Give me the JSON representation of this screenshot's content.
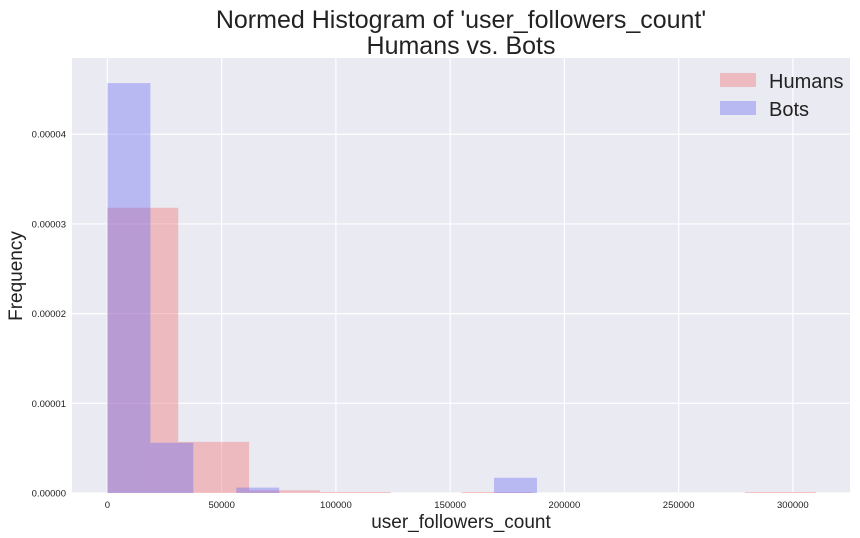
{
  "chart_data": {
    "type": "bar",
    "title": "Normed Histogram of 'user_followers_count'",
    "subtitle": "Humans vs. Bots",
    "xlabel": "user_followers_count",
    "ylabel": "Frequency",
    "xlim": [
      -15500,
      325000
    ],
    "ylim": [
      0,
      4.85e-05
    ],
    "x_ticks": [
      0,
      50000,
      100000,
      150000,
      200000,
      250000,
      300000
    ],
    "x_tick_labels": [
      "0",
      "50000",
      "100000",
      "150000",
      "200000",
      "250000",
      "300000"
    ],
    "y_ticks": [
      0,
      1e-05,
      2e-05,
      3e-05,
      4e-05
    ],
    "y_tick_labels": [
      "0.00000",
      "0.00001",
      "0.00002",
      "0.00003",
      "0.00004"
    ],
    "grid": true,
    "legend_position": "top-right",
    "series": [
      {
        "name": "Humans",
        "color": "#f08080",
        "opacity": 0.45,
        "bin_edges": [
          0,
          31000,
          62000,
          93000,
          124000,
          155000,
          186000,
          217000,
          248000,
          279000,
          310000
        ],
        "values": [
          3.18e-05,
          5.7e-06,
          3e-07,
          1e-07,
          0.0,
          1e-07,
          0.0,
          0.0,
          0.0,
          1e-07
        ]
      },
      {
        "name": "Bots",
        "color": "#6e6ef5",
        "opacity": 0.4,
        "bin_edges": [
          0,
          18800,
          37600,
          56400,
          75200,
          94000,
          112800,
          131600,
          150400,
          169200,
          188000
        ],
        "values": [
          4.57e-05,
          5.6e-06,
          0.0,
          6e-07,
          0.0,
          0.0,
          0.0,
          0.0,
          0.0,
          1.7e-06
        ]
      }
    ]
  }
}
